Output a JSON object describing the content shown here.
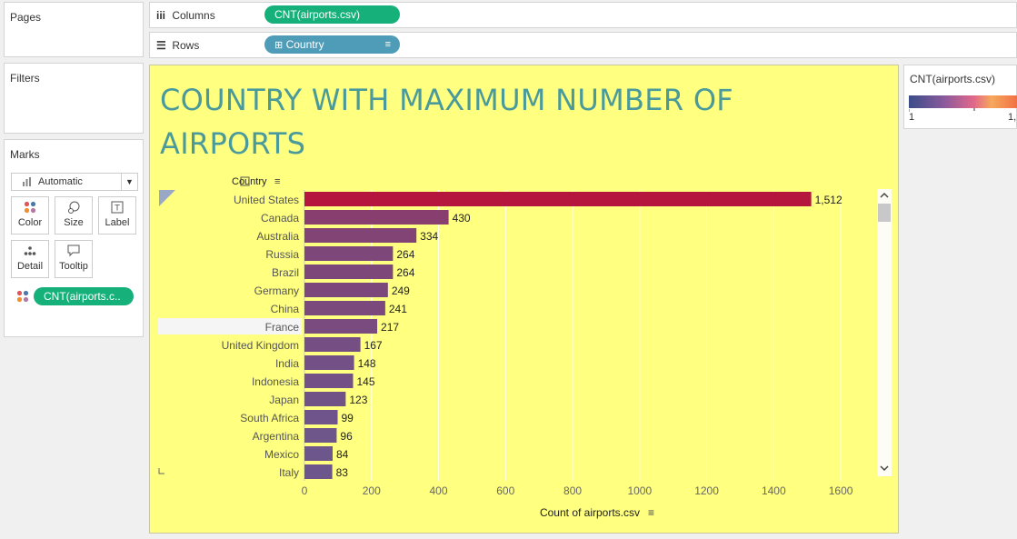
{
  "pages_card": {
    "title": "Pages"
  },
  "filters_card": {
    "title": "Filters"
  },
  "marks_card": {
    "title": "Marks",
    "mark_type": "Automatic",
    "buttons": [
      {
        "label": "Color",
        "icon": "color-icon"
      },
      {
        "label": "Size",
        "icon": "size-icon"
      },
      {
        "label": "Label",
        "icon": "label-icon"
      },
      {
        "label": "Detail",
        "icon": "detail-icon"
      },
      {
        "label": "Tooltip",
        "icon": "tooltip-icon"
      }
    ],
    "color_pill": "CNT(airports.c.."
  },
  "shelves": {
    "columns_label": "Columns",
    "columns_pill": "CNT(airports.csv)",
    "rows_label": "Rows",
    "rows_pill": "Country"
  },
  "viz": {
    "title": "COUNTRY WITH MAXIMUM NUMBER OF AIRPORTS",
    "row_header": "Country",
    "selected_row": "France"
  },
  "legend": {
    "title": "CNT(airports.csv)",
    "min_label": "1",
    "max_label": "1,",
    "colors": [
      "#3b4d8a",
      "#8a5a9c",
      "#e2688a",
      "#f6a85c",
      "#ef5a3a"
    ]
  },
  "colors": {
    "viz_background": "#ffff80",
    "title_color": "#4a9a9c",
    "pill_green": "#16b07a",
    "pill_blue": "#4e9cb8",
    "bar_low": "#5a66a0",
    "bar_high": "#b5163d"
  },
  "chart_data": {
    "type": "bar",
    "orientation": "horizontal",
    "categories": [
      "United States",
      "Canada",
      "Australia",
      "Russia",
      "Brazil",
      "Germany",
      "China",
      "France",
      "United Kingdom",
      "India",
      "Indonesia",
      "Japan",
      "South Africa",
      "Argentina",
      "Mexico",
      "Italy"
    ],
    "values": [
      1512,
      430,
      334,
      264,
      264,
      249,
      241,
      217,
      167,
      148,
      145,
      123,
      99,
      96,
      84,
      83
    ],
    "value_labels": [
      "1,512",
      "430",
      "334",
      "264",
      "264",
      "249",
      "241",
      "217",
      "167",
      "148",
      "145",
      "123",
      "99",
      "96",
      "84",
      "83"
    ],
    "xlabel": "Count of airports.csv",
    "ylabel": "Country",
    "xlim": [
      0,
      1700
    ],
    "xticks": [
      0,
      200,
      400,
      600,
      800,
      1000,
      1200,
      1400,
      1600
    ],
    "grid": "vertical"
  }
}
